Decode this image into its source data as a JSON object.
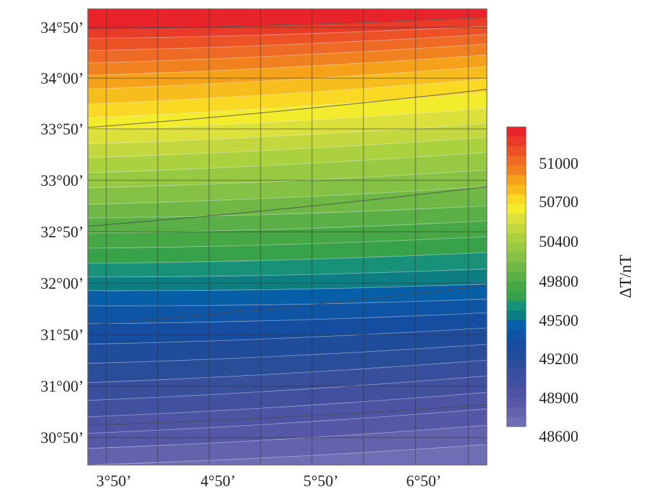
{
  "chart_data": {
    "type": "heatmap",
    "title": "",
    "xlabel": "",
    "ylabel": "",
    "x_ticks": [
      "3°50’",
      "4°50’",
      "5°50’",
      "6°50’"
    ],
    "y_ticks": [
      "30°50’",
      "31°00’",
      "31°50’",
      "32°00’",
      "32°50’",
      "33°00’",
      "33°50’",
      "34°00’",
      "34°50’"
    ],
    "grid": true,
    "colorbar": {
      "label": "ΔT/nT",
      "tick_labels": [
        "51000",
        "50700",
        "50400",
        "49800",
        "49500",
        "49200",
        "48900",
        "48600"
      ],
      "placement": "right",
      "colors": [
        "#e8242a",
        "#ea3a28",
        "#ed5226",
        "#ef6a24",
        "#f1811f",
        "#f5a21a",
        "#f7bd1c",
        "#f9d923",
        "#f2ec2c",
        "#dbe03a",
        "#c3d83e",
        "#acd13f",
        "#97c943",
        "#84c145",
        "#6fb846",
        "#5ab046",
        "#45a845",
        "#37a24a",
        "#179178",
        "#0d7f83",
        "#075fa8",
        "#0f55a6",
        "#154da0",
        "#1f4c9b",
        "#2a4d9a",
        "#374f9d",
        "#42519f",
        "#4c54a3",
        "#5757a8",
        "#6362ad",
        "#6e6eb4"
      ]
    },
    "contour_lines_drawn": true,
    "value_range": [
      48600,
      51200
    ]
  }
}
